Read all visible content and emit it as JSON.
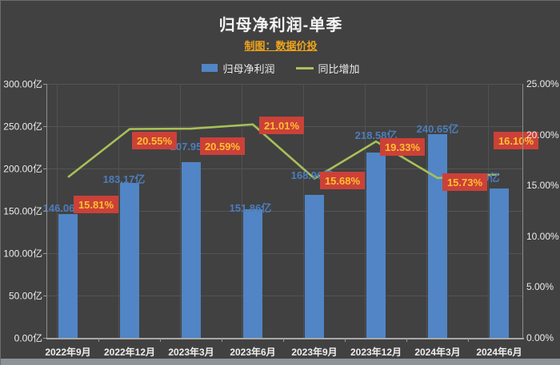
{
  "header": {
    "title": "归母净利润-单季",
    "subtitle": "制图：数据价投"
  },
  "legend": {
    "items": [
      {
        "label": "归母净利润",
        "type": "bar",
        "color": "#5185c5"
      },
      {
        "label": "同比增加",
        "type": "line",
        "color": "#a8c058"
      }
    ]
  },
  "chart_data": {
    "type": "bar+line combo",
    "title": "归母净利润-单季",
    "subtitle": "制图：数据价投",
    "categories": [
      "2022年9月",
      "2022年12月",
      "2023年3月",
      "2023年6月",
      "2023年9月",
      "2023年12月",
      "2024年3月",
      "2024年6月"
    ],
    "series": [
      {
        "name": "归母净利润",
        "type": "bar",
        "axis": "left",
        "unit": "亿",
        "color": "#5185c5",
        "values": [
          146.06,
          183.17,
          207.95,
          151.86,
          168.96,
          218.58,
          240.65,
          176.3
        ],
        "labels": [
          "146.06亿",
          "183.17亿",
          "207.95亿",
          "151.86亿",
          "168.96亿",
          "218.58亿",
          "240.65亿",
          "176.30亿"
        ]
      },
      {
        "name": "同比增加",
        "type": "line",
        "axis": "right",
        "unit": "%",
        "color": "#a8c058",
        "values": [
          15.81,
          20.55,
          20.59,
          21.01,
          15.68,
          19.33,
          15.73,
          16.1
        ],
        "labels": [
          "15.81%",
          "20.55%",
          "20.59%",
          "21.01%",
          "15.68%",
          "19.33%",
          "15.73%",
          "16.10%"
        ],
        "label_box_color": "#cb4138",
        "label_text_color": "#ffbf2f"
      }
    ],
    "left_axis": {
      "min": 0,
      "max": 300,
      "ticks": [
        "300.00亿",
        "250.00亿",
        "200.00亿",
        "150.00亿",
        "100.00亿",
        "50.00亿",
        "0.00亿"
      ]
    },
    "right_axis": {
      "min": 0,
      "max": 25,
      "ticks": [
        "25.00%",
        "20.00%",
        "15.00%",
        "10.00%",
        "5.00%",
        "0.00%"
      ]
    },
    "grid": true,
    "legend_position": "top"
  }
}
